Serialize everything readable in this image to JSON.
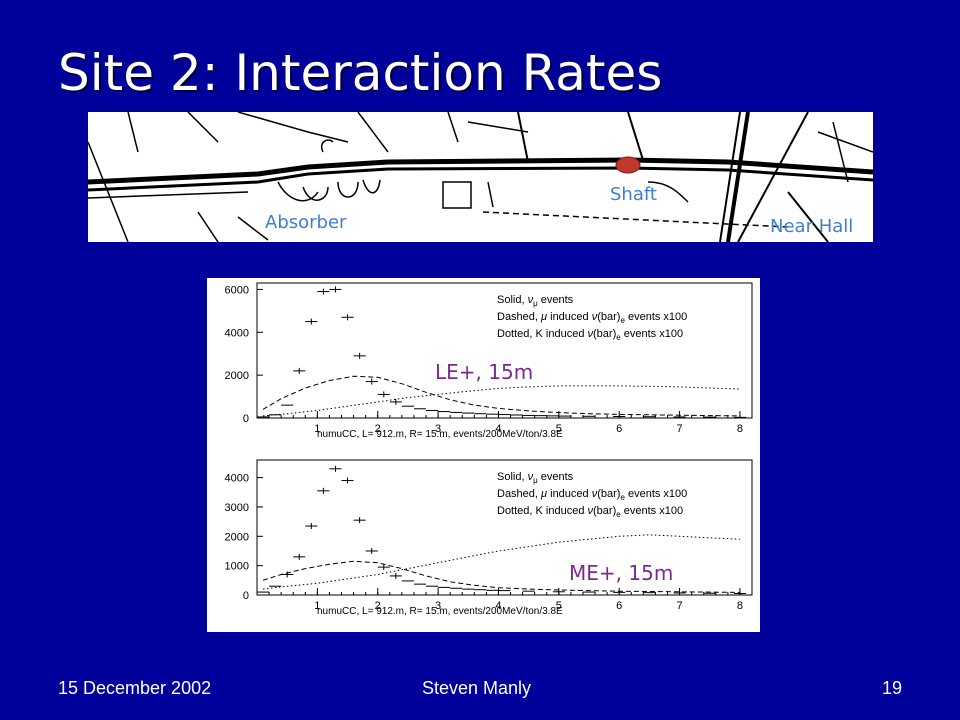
{
  "slide": {
    "title": "Site 2: Interaction Rates",
    "background_color": "#00009a"
  },
  "map": {
    "labels": {
      "absorber": "Absorber",
      "shaft": "Shaft",
      "near_hall": "Near Hall"
    },
    "label_color": "#3f7fd0",
    "marker_color": "#c0392b"
  },
  "plot_labels": {
    "top": "LE+, 15m",
    "bottom": "ME+, 15m"
  },
  "footer": {
    "date": "15 December 2002",
    "author": "Steven Manly",
    "page": "19"
  },
  "chart_data": [
    {
      "type": "line",
      "xlabel": "numuCC, L= 912.m, R= 15.m, events/200MeV/ton/3.8E",
      "x_ticks": [
        1,
        2,
        3,
        4,
        5,
        6,
        7,
        8
      ],
      "y_ticks": [
        0,
        2000,
        4000,
        6000
      ],
      "xlim": [
        0,
        8.2
      ],
      "ylim": [
        0,
        6300
      ],
      "legend": [
        {
          "prefix": "Solid, ",
          "sym": "ν",
          "sub": "μ",
          "suffix": " events"
        },
        {
          "prefix": "Dashed, ",
          "sym": "μ",
          "mid": " induced ",
          "sym2": "ν",
          "paren": "(bar)",
          "sub": "e",
          "suffix": " events x100"
        },
        {
          "prefix": "Dotted, K induced ",
          "sym2": "ν",
          "paren": "(bar)",
          "sub": "e",
          "suffix": " events x100"
        }
      ],
      "series": [
        {
          "style": "solid",
          "x": [
            0.1,
            0.3,
            0.5,
            0.7,
            0.9,
            1.1,
            1.3,
            1.5,
            1.7,
            1.9,
            2.1,
            2.3,
            2.5,
            2.7,
            2.9,
            3.1,
            3.3,
            3.5,
            3.7,
            3.9,
            4.1,
            4.3,
            4.5,
            4.7,
            4.9,
            5.1,
            5.5,
            6.0,
            6.5,
            7.0,
            7.5,
            8.0
          ],
          "y": [
            50,
            150,
            600,
            2200,
            4500,
            5900,
            6000,
            4700,
            2900,
            1700,
            1100,
            750,
            550,
            430,
            350,
            300,
            260,
            230,
            200,
            180,
            160,
            140,
            120,
            110,
            100,
            90,
            80,
            70,
            60,
            50,
            40,
            30
          ]
        },
        {
          "style": "dashed",
          "x": [
            0.1,
            0.4,
            0.8,
            1.2,
            1.6,
            2.0,
            2.4,
            2.8,
            3.2,
            3.6,
            4.0,
            4.5,
            5.0,
            5.5,
            6.0,
            6.5,
            7.0,
            7.5,
            8.0
          ],
          "y": [
            400,
            900,
            1400,
            1750,
            1950,
            1900,
            1600,
            1200,
            850,
            600,
            450,
            330,
            250,
            200,
            170,
            150,
            130,
            110,
            100
          ]
        },
        {
          "style": "dotted",
          "x": [
            0.1,
            0.5,
            1.0,
            1.5,
            2.0,
            2.5,
            3.0,
            3.5,
            4.0,
            4.5,
            5.0,
            5.5,
            6.0,
            6.5,
            7.0,
            7.5,
            8.0
          ],
          "y": [
            100,
            200,
            350,
            550,
            750,
            950,
            1100,
            1250,
            1380,
            1450,
            1500,
            1500,
            1500,
            1480,
            1450,
            1400,
            1350
          ]
        }
      ]
    },
    {
      "type": "line",
      "xlabel": "numuCC, L= 912.m, R= 15.m, events/200MeV/ton/3.8E",
      "x_ticks": [
        1,
        2,
        3,
        4,
        5,
        6,
        7,
        8
      ],
      "y_ticks": [
        0,
        1000,
        2000,
        3000,
        4000
      ],
      "xlim": [
        0,
        8.2
      ],
      "ylim": [
        0,
        4600
      ],
      "legend": [
        {
          "prefix": "Solid, ",
          "sym": "ν",
          "sub": "μ",
          "suffix": " events"
        },
        {
          "prefix": "Dashed, ",
          "sym": "μ",
          "mid": " induced ",
          "sym2": "ν",
          "paren": "(bar)",
          "sub": "e",
          "suffix": " events x100"
        },
        {
          "prefix": "Dotted, K induced ",
          "sym2": "ν",
          "paren": "(bar)",
          "sub": "e",
          "suffix": " events x100"
        }
      ],
      "series": [
        {
          "style": "solid",
          "x": [
            0.1,
            0.3,
            0.5,
            0.7,
            0.9,
            1.1,
            1.3,
            1.5,
            1.7,
            1.9,
            2.1,
            2.3,
            2.5,
            2.7,
            2.9,
            3.1,
            3.3,
            3.5,
            3.7,
            3.9,
            4.1,
            4.5,
            5.0,
            5.5,
            6.0,
            6.5,
            7.0,
            7.5,
            8.0
          ],
          "y": [
            100,
            300,
            700,
            1300,
            2350,
            3550,
            4300,
            3900,
            2550,
            1500,
            950,
            650,
            480,
            370,
            300,
            260,
            230,
            200,
            180,
            160,
            150,
            130,
            110,
            100,
            90,
            80,
            70,
            60,
            50
          ]
        },
        {
          "style": "dashed",
          "x": [
            0.1,
            0.4,
            0.8,
            1.2,
            1.6,
            2.0,
            2.4,
            2.8,
            3.2,
            3.6,
            4.0,
            4.5,
            5.0,
            5.5,
            6.0,
            6.5,
            7.0,
            7.5,
            8.0
          ],
          "y": [
            500,
            700,
            900,
            1050,
            1150,
            1100,
            900,
            650,
            450,
            330,
            250,
            200,
            170,
            150,
            130,
            120,
            110,
            100,
            90
          ]
        },
        {
          "style": "dotted",
          "x": [
            0.1,
            0.5,
            1.0,
            1.5,
            2.0,
            2.5,
            3.0,
            3.5,
            4.0,
            4.5,
            5.0,
            5.5,
            6.0,
            6.5,
            7.0,
            7.5,
            8.0
          ],
          "y": [
            200,
            300,
            400,
            550,
            700,
            900,
            1100,
            1300,
            1500,
            1650,
            1800,
            1900,
            2000,
            2050,
            2000,
            1950,
            1900
          ]
        }
      ]
    }
  ]
}
